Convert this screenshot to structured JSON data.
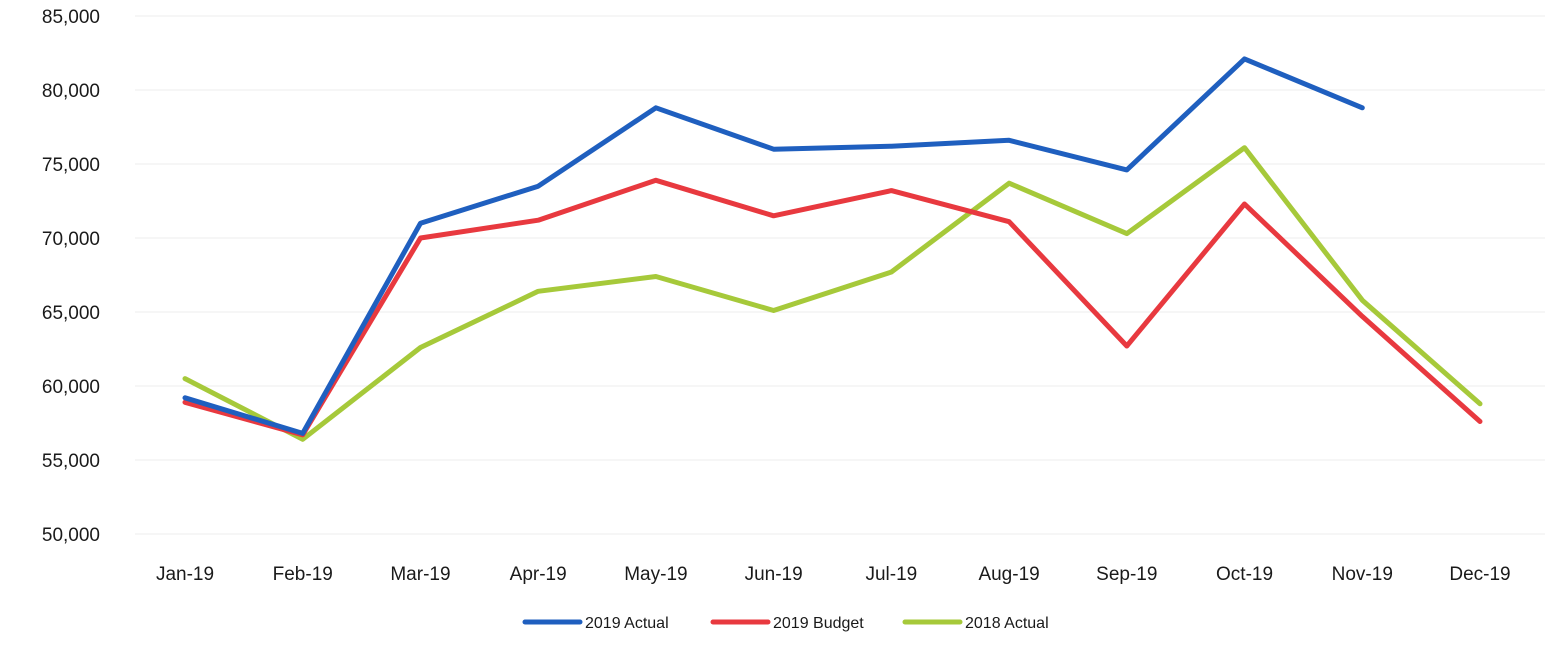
{
  "chart_data": {
    "type": "line",
    "title": "",
    "xlabel": "",
    "ylabel": "",
    "categories": [
      "Jan-19",
      "Feb-19",
      "Mar-19",
      "Apr-19",
      "May-19",
      "Jun-19",
      "Jul-19",
      "Aug-19",
      "Sep-19",
      "Oct-19",
      "Nov-19",
      "Dec-19"
    ],
    "ylim": [
      50000,
      85000
    ],
    "yticks": [
      "50,000",
      "55,000",
      "60,000",
      "65,000",
      "70,000",
      "75,000",
      "80,000",
      "85,000"
    ],
    "grid": true,
    "legend_position": "bottom",
    "series": [
      {
        "name": "2019 Actual",
        "color": "#1f5fbf",
        "values": [
          59200,
          56800,
          71000,
          73500,
          78800,
          76000,
          76200,
          76600,
          74600,
          82100,
          78800,
          null
        ]
      },
      {
        "name": "2019 Budget",
        "color": "#e8393f",
        "values": [
          58900,
          56700,
          70000,
          71200,
          73900,
          71500,
          73200,
          71100,
          62700,
          72300,
          64700,
          57600
        ]
      },
      {
        "name": "2018 Actual",
        "color": "#a6c93a",
        "values": [
          60500,
          56400,
          62600,
          66400,
          67400,
          65100,
          67700,
          73700,
          70300,
          76100,
          65800,
          58800
        ]
      }
    ]
  }
}
